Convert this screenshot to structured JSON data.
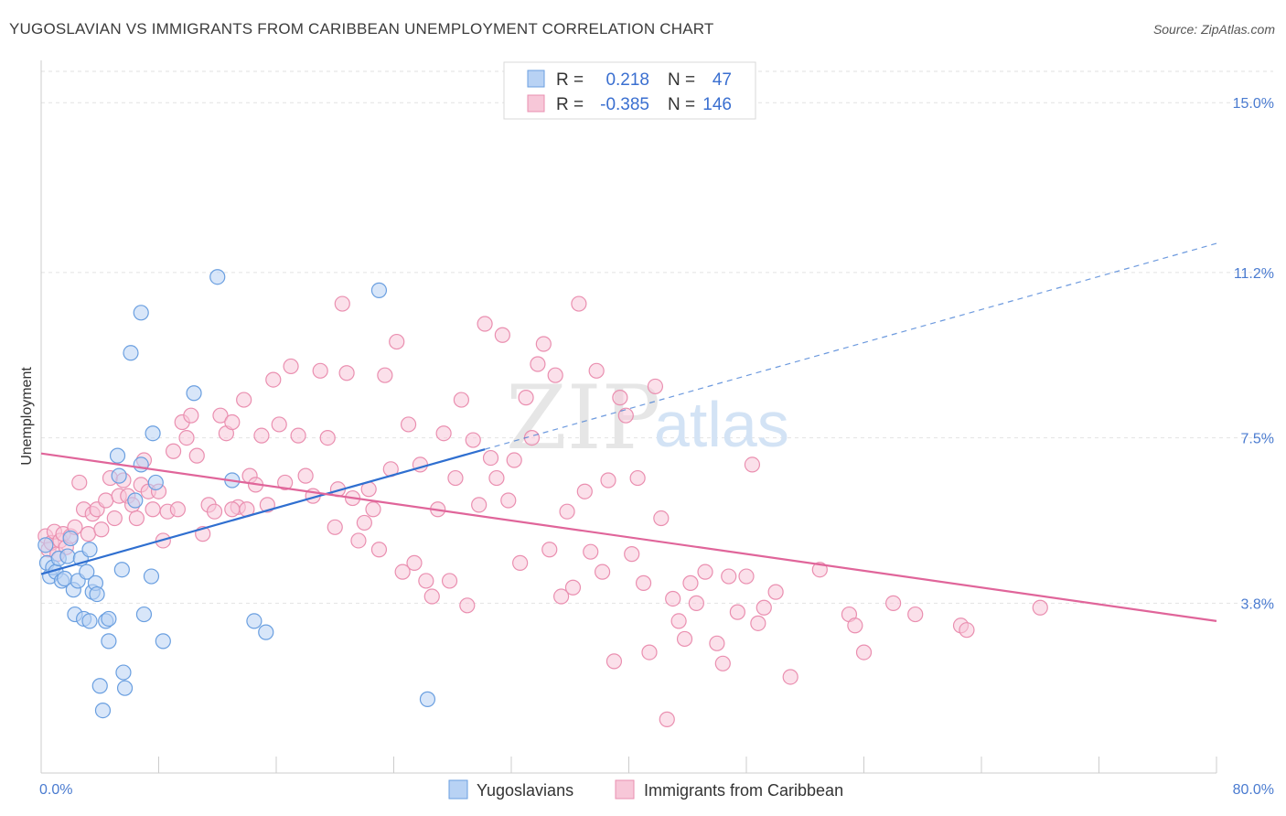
{
  "header": {
    "title": "YUGOSLAVIAN VS IMMIGRANTS FROM CARIBBEAN UNEMPLOYMENT CORRELATION CHART",
    "source": "Source: ZipAtlas.com"
  },
  "watermark": {
    "zip": "ZIP",
    "atlas": "atlas"
  },
  "legend": {
    "rows": [
      {
        "r_label": "R =",
        "r_value": "0.218",
        "n_label": "N =",
        "n_value": "47"
      },
      {
        "r_label": "R =",
        "r_value": "-0.385",
        "n_label": "N =",
        "n_value": "146"
      }
    ]
  },
  "bottom_legend": [
    "Yugoslavians",
    "Immigrants from Caribbean"
  ],
  "colors": {
    "blue": "#6a9fe0",
    "blue_fill": "#b8d2f4",
    "blue_line": "#2f6fd0",
    "pink": "#ea8fb0",
    "pink_fill": "#f7c7d8",
    "pink_line": "#e0659a"
  },
  "chart_data": {
    "type": "scatter",
    "title": "YUGOSLAVIAN VS IMMIGRANTS FROM CARIBBEAN UNEMPLOYMENT CORRELATION CHART",
    "xlabel": "",
    "ylabel": "Unemployment",
    "xlim": [
      0,
      80
    ],
    "ylim": [
      0,
      15.7
    ],
    "x_tick_labels": [
      "0.0%",
      "80.0%"
    ],
    "y_ticks": [
      3.8,
      7.5,
      11.2,
      15.0
    ],
    "y_tick_labels": [
      "3.8%",
      "7.5%",
      "11.2%",
      "15.0%"
    ],
    "grid": true,
    "legend_position": "top-center",
    "series": [
      {
        "name": "Yugoslavians",
        "points": [
          [
            0.3,
            5.1
          ],
          [
            0.4,
            4.7
          ],
          [
            0.6,
            4.4
          ],
          [
            0.8,
            4.6
          ],
          [
            1.0,
            4.5
          ],
          [
            1.2,
            4.8
          ],
          [
            1.4,
            4.3
          ],
          [
            1.6,
            4.35
          ],
          [
            1.8,
            4.85
          ],
          [
            2.0,
            5.25
          ],
          [
            2.2,
            4.1
          ],
          [
            2.3,
            3.55
          ],
          [
            2.5,
            4.3
          ],
          [
            2.7,
            4.8
          ],
          [
            2.9,
            3.45
          ],
          [
            3.1,
            4.5
          ],
          [
            3.3,
            5.0
          ],
          [
            3.5,
            4.05
          ],
          [
            3.7,
            4.25
          ],
          [
            3.8,
            4.0
          ],
          [
            4.0,
            1.95
          ],
          [
            4.2,
            1.4
          ],
          [
            4.4,
            3.4
          ],
          [
            4.6,
            3.45
          ],
          [
            5.2,
            7.1
          ],
          [
            5.3,
            6.65
          ],
          [
            5.6,
            2.25
          ],
          [
            5.7,
            1.9
          ],
          [
            6.1,
            9.4
          ],
          [
            6.8,
            6.9
          ],
          [
            6.4,
            6.1
          ],
          [
            7.0,
            3.55
          ],
          [
            7.5,
            4.4
          ],
          [
            6.8,
            10.3
          ],
          [
            7.6,
            7.6
          ],
          [
            7.8,
            6.5
          ],
          [
            8.3,
            2.95
          ],
          [
            10.4,
            8.5
          ],
          [
            12.0,
            11.1
          ],
          [
            13.0,
            6.55
          ],
          [
            14.5,
            3.4
          ],
          [
            15.3,
            3.15
          ],
          [
            23.0,
            10.8
          ],
          [
            26.3,
            1.65
          ],
          [
            5.5,
            4.55
          ],
          [
            4.6,
            2.95
          ],
          [
            3.3,
            3.4
          ]
        ]
      },
      {
        "name": "Immigrants from Caribbean",
        "points": [
          [
            0.3,
            5.3
          ],
          [
            0.5,
            5.0
          ],
          [
            0.7,
            5.15
          ],
          [
            0.9,
            5.4
          ],
          [
            1.1,
            4.9
          ],
          [
            1.3,
            5.2
          ],
          [
            1.5,
            5.35
          ],
          [
            1.7,
            5.05
          ],
          [
            2.0,
            5.3
          ],
          [
            2.3,
            5.5
          ],
          [
            2.6,
            6.5
          ],
          [
            2.9,
            5.9
          ],
          [
            3.2,
            5.35
          ],
          [
            3.5,
            5.8
          ],
          [
            3.8,
            5.9
          ],
          [
            4.1,
            5.45
          ],
          [
            4.4,
            6.1
          ],
          [
            4.7,
            6.6
          ],
          [
            5.0,
            5.7
          ],
          [
            5.3,
            6.2
          ],
          [
            5.6,
            6.55
          ],
          [
            5.9,
            6.2
          ],
          [
            6.2,
            6.0
          ],
          [
            6.5,
            5.7
          ],
          [
            6.8,
            6.45
          ],
          [
            7.0,
            7.0
          ],
          [
            7.3,
            6.3
          ],
          [
            7.6,
            5.9
          ],
          [
            8.0,
            6.3
          ],
          [
            8.3,
            5.2
          ],
          [
            8.6,
            5.85
          ],
          [
            9.0,
            7.2
          ],
          [
            9.3,
            5.9
          ],
          [
            9.6,
            7.85
          ],
          [
            9.9,
            7.5
          ],
          [
            10.2,
            8.0
          ],
          [
            10.6,
            7.1
          ],
          [
            11.0,
            5.35
          ],
          [
            11.4,
            6.0
          ],
          [
            11.8,
            5.85
          ],
          [
            12.2,
            8.0
          ],
          [
            12.6,
            7.6
          ],
          [
            13.0,
            7.85
          ],
          [
            13.4,
            5.95
          ],
          [
            13.8,
            8.35
          ],
          [
            14.2,
            6.65
          ],
          [
            14.6,
            6.45
          ],
          [
            15.0,
            7.55
          ],
          [
            15.4,
            6.0
          ],
          [
            15.8,
            8.8
          ],
          [
            16.2,
            7.8
          ],
          [
            16.6,
            6.5
          ],
          [
            17.0,
            9.1
          ],
          [
            17.5,
            7.55
          ],
          [
            18.0,
            6.65
          ],
          [
            18.5,
            6.2
          ],
          [
            19.0,
            9.0
          ],
          [
            19.5,
            7.5
          ],
          [
            20.0,
            5.5
          ],
          [
            20.2,
            6.35
          ],
          [
            20.5,
            10.5
          ],
          [
            20.8,
            8.95
          ],
          [
            21.2,
            6.15
          ],
          [
            21.6,
            5.2
          ],
          [
            22.0,
            5.6
          ],
          [
            22.3,
            6.35
          ],
          [
            22.6,
            5.9
          ],
          [
            23.0,
            5.0
          ],
          [
            23.4,
            8.9
          ],
          [
            23.8,
            6.8
          ],
          [
            24.2,
            9.65
          ],
          [
            24.6,
            4.5
          ],
          [
            25.0,
            7.8
          ],
          [
            25.4,
            4.7
          ],
          [
            25.8,
            6.9
          ],
          [
            26.2,
            4.3
          ],
          [
            26.6,
            3.95
          ],
          [
            27.0,
            5.9
          ],
          [
            27.4,
            7.6
          ],
          [
            27.8,
            4.3
          ],
          [
            28.2,
            6.6
          ],
          [
            28.6,
            8.35
          ],
          [
            29.0,
            3.75
          ],
          [
            29.4,
            7.45
          ],
          [
            29.8,
            6.0
          ],
          [
            30.2,
            10.05
          ],
          [
            30.6,
            7.05
          ],
          [
            31.0,
            6.6
          ],
          [
            31.4,
            9.8
          ],
          [
            31.8,
            6.1
          ],
          [
            32.2,
            7.0
          ],
          [
            32.6,
            4.7
          ],
          [
            33.0,
            8.4
          ],
          [
            33.4,
            7.5
          ],
          [
            33.8,
            9.15
          ],
          [
            34.2,
            9.6
          ],
          [
            34.6,
            5.0
          ],
          [
            35.0,
            8.9
          ],
          [
            35.4,
            3.95
          ],
          [
            35.8,
            5.85
          ],
          [
            36.2,
            4.15
          ],
          [
            36.6,
            10.5
          ],
          [
            37.0,
            6.3
          ],
          [
            37.4,
            4.95
          ],
          [
            37.8,
            9.0
          ],
          [
            38.2,
            4.5
          ],
          [
            38.6,
            6.55
          ],
          [
            39.0,
            2.5
          ],
          [
            39.4,
            8.4
          ],
          [
            39.8,
            8.0
          ],
          [
            40.2,
            4.9
          ],
          [
            40.6,
            6.6
          ],
          [
            41.0,
            4.25
          ],
          [
            41.4,
            2.7
          ],
          [
            41.8,
            8.65
          ],
          [
            42.2,
            5.7
          ],
          [
            42.6,
            1.2
          ],
          [
            43.0,
            3.9
          ],
          [
            43.4,
            3.4
          ],
          [
            43.8,
            3.0
          ],
          [
            44.2,
            4.25
          ],
          [
            44.6,
            3.8
          ],
          [
            45.2,
            4.5
          ],
          [
            46.0,
            2.9
          ],
          [
            46.4,
            2.45
          ],
          [
            46.8,
            4.4
          ],
          [
            47.4,
            3.6
          ],
          [
            48.0,
            4.4
          ],
          [
            48.4,
            6.9
          ],
          [
            48.8,
            3.35
          ],
          [
            49.2,
            3.7
          ],
          [
            50.0,
            4.05
          ],
          [
            51.0,
            2.15
          ],
          [
            53.0,
            4.55
          ],
          [
            55.0,
            3.55
          ],
          [
            55.4,
            3.3
          ],
          [
            56.0,
            2.7
          ],
          [
            58.0,
            3.8
          ],
          [
            59.5,
            3.55
          ],
          [
            62.6,
            3.3
          ],
          [
            63.0,
            3.2
          ],
          [
            68.0,
            3.7
          ],
          [
            13.0,
            5.9
          ],
          [
            14.0,
            5.9
          ]
        ]
      }
    ],
    "trend_lines": [
      {
        "name": "Yugoslavians",
        "x_start": 0,
        "y_start": 4.45,
        "x_end": 80,
        "y_end": 11.85,
        "solid_until_x": 30.2
      },
      {
        "name": "Immigrants from Caribbean",
        "x_start": 0,
        "y_start": 7.15,
        "x_end": 80,
        "y_end": 3.4
      }
    ]
  }
}
